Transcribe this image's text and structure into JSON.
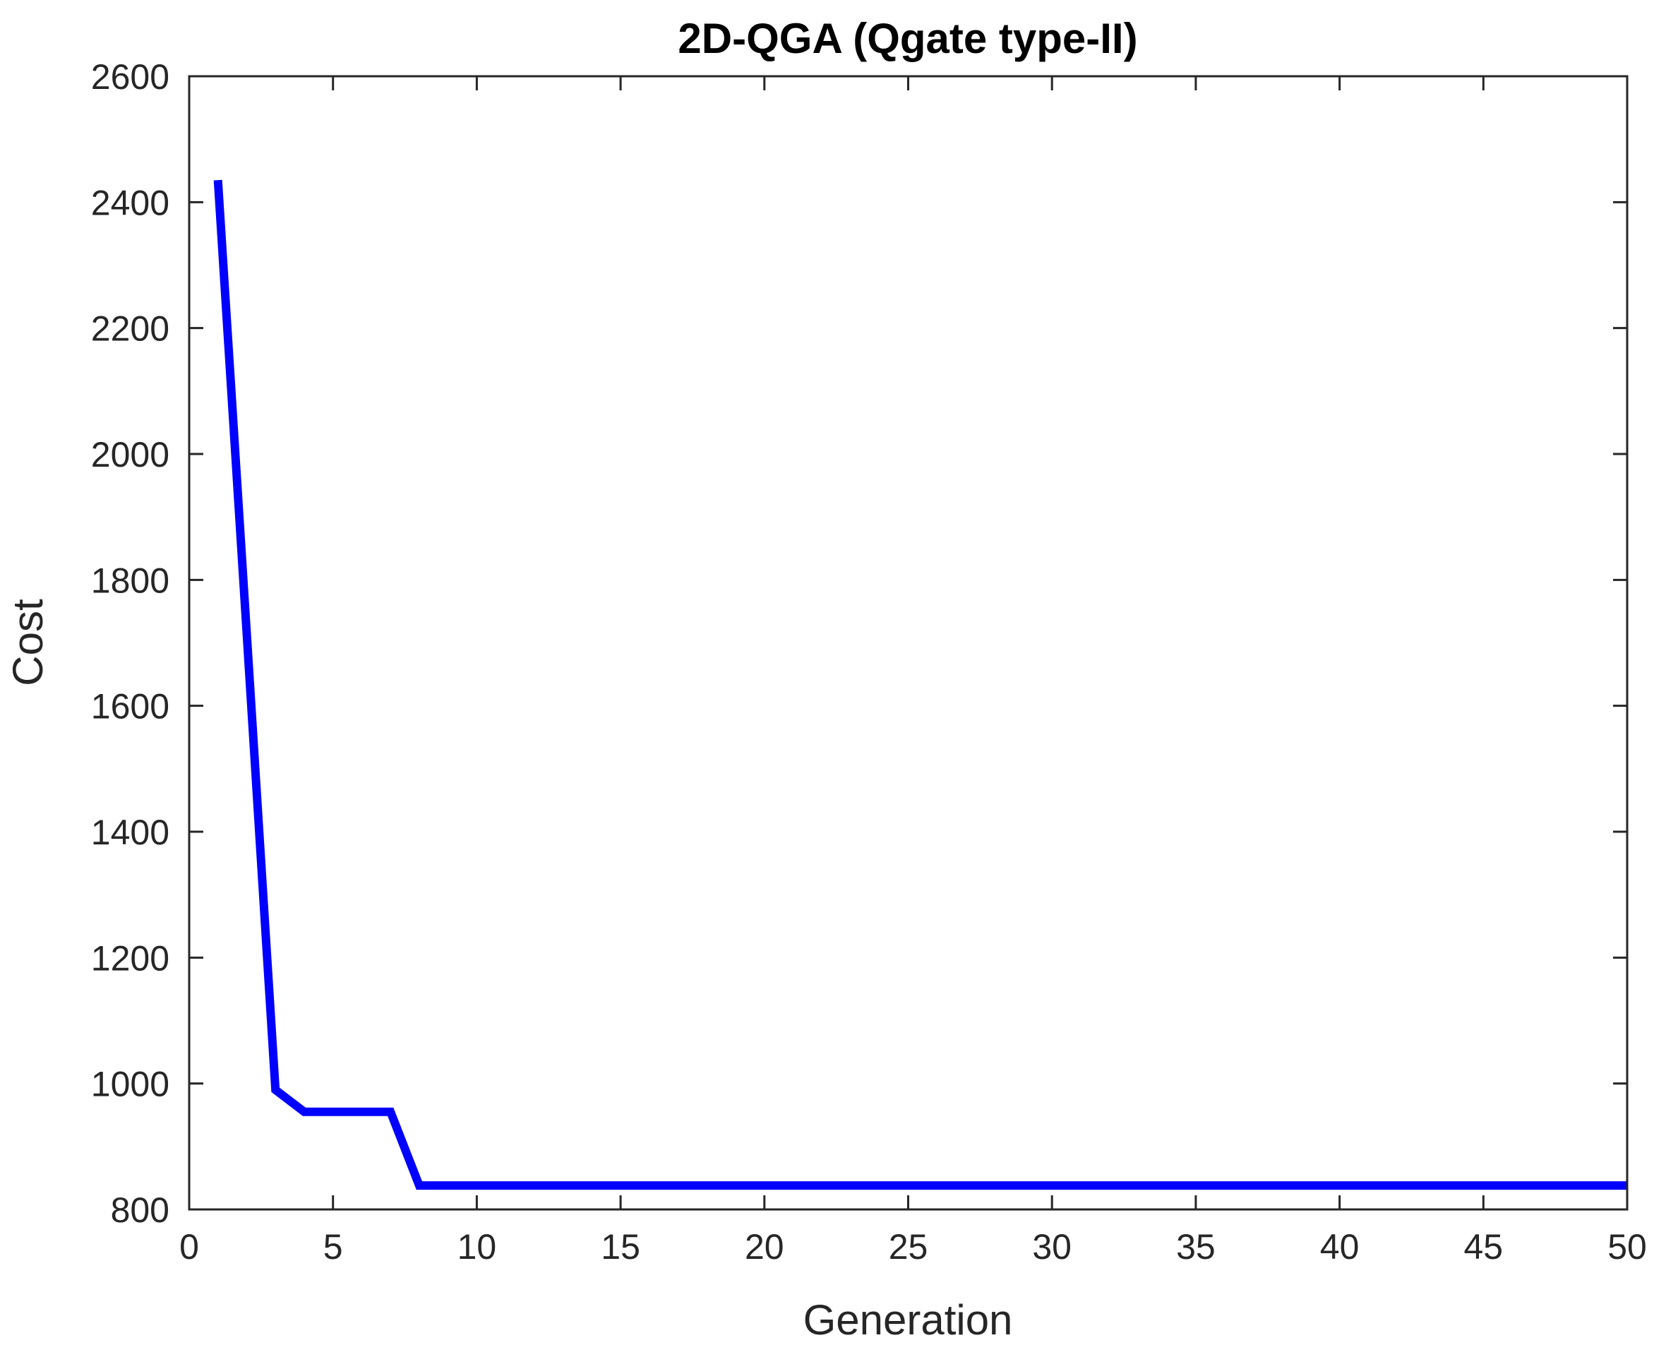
{
  "chart_data": {
    "type": "line",
    "title": "2D-QGA (Qgate type-II)",
    "xlabel": "Generation",
    "ylabel": "Cost",
    "xlim": [
      0,
      50
    ],
    "ylim": [
      800,
      2600
    ],
    "xticks": [
      0,
      5,
      10,
      15,
      20,
      25,
      30,
      35,
      40,
      45,
      50
    ],
    "yticks": [
      800,
      1000,
      1200,
      1400,
      1600,
      1800,
      2000,
      2200,
      2400,
      2600
    ],
    "grid": false,
    "series": [
      {
        "color": "#0000ff",
        "x": [
          1,
          2,
          3,
          4,
          5,
          6,
          7,
          8,
          9,
          10,
          11,
          12,
          13,
          14,
          15,
          16,
          17,
          18,
          19,
          20,
          21,
          22,
          23,
          24,
          25,
          26,
          27,
          28,
          29,
          30,
          31,
          32,
          33,
          34,
          35,
          36,
          37,
          38,
          39,
          40,
          41,
          42,
          43,
          44,
          45,
          46,
          47,
          48,
          49,
          50
        ],
        "y": [
          2435,
          1715,
          990,
          955,
          955,
          955,
          955,
          838,
          838,
          838,
          838,
          838,
          838,
          838,
          838,
          838,
          838,
          838,
          838,
          838,
          838,
          838,
          838,
          838,
          838,
          838,
          838,
          838,
          838,
          838,
          838,
          838,
          838,
          838,
          838,
          838,
          838,
          838,
          838,
          838,
          838,
          838,
          838,
          838,
          838,
          838,
          838,
          838,
          838,
          838
        ]
      }
    ]
  }
}
